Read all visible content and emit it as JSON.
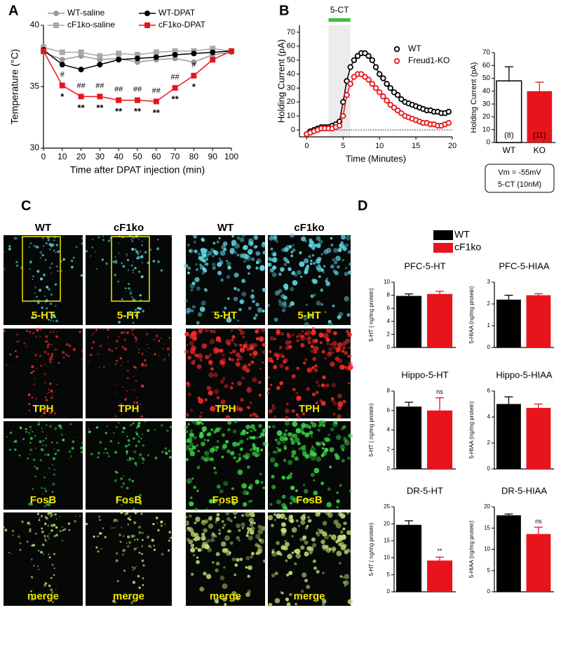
{
  "panel_labels": [
    "A",
    "B",
    "C",
    "D"
  ],
  "chart_data": [
    {
      "type": "line",
      "xlabel": "Time after DPAT injection (min)",
      "ylabel": "Temperature (°C)",
      "x": [
        0,
        10,
        20,
        30,
        40,
        50,
        60,
        70,
        80,
        90,
        100
      ],
      "xlim": [
        0,
        100
      ],
      "ylim": [
        30,
        40
      ],
      "xticks": [
        0,
        10,
        20,
        30,
        40,
        50,
        60,
        70,
        80,
        90,
        100
      ],
      "yticks": [
        30,
        35,
        40
      ],
      "series": [
        {
          "name": "WT-saline",
          "color": "#9a9a9a",
          "marker": "circle",
          "values": [
            37.8,
            37.2,
            37.5,
            37.2,
            37.3,
            37.0,
            37.2,
            37.3,
            37.0,
            37.6,
            37.8
          ]
        },
        {
          "name": "cF1ko-saline",
          "color": "#a8a8a8",
          "marker": "square",
          "values": [
            38.2,
            37.8,
            37.8,
            37.5,
            37.7,
            37.6,
            37.8,
            37.9,
            37.9,
            38.1,
            37.9
          ]
        },
        {
          "name": "WT-DPAT",
          "color": "#000000",
          "marker": "circle",
          "values": [
            38.0,
            36.8,
            36.4,
            36.8,
            37.2,
            37.3,
            37.4,
            37.6,
            37.7,
            37.8,
            37.9
          ]
        },
        {
          "name": "cF1ko-DPAT",
          "color": "#e8141c",
          "marker": "square",
          "values": [
            37.9,
            35.1,
            34.2,
            34.2,
            33.9,
            33.9,
            33.8,
            34.9,
            35.9,
            37.2,
            37.9
          ],
          "hash_labels": [
            null,
            "#",
            "##",
            "##",
            "##",
            "##",
            "##",
            "##",
            "#",
            null,
            null
          ],
          "star_labels": [
            null,
            "*",
            "**",
            "**",
            "**",
            "**",
            "**",
            "**",
            "*",
            null,
            null
          ]
        }
      ]
    },
    {
      "type": "line",
      "xlabel": "Time (Minutes)",
      "ylabel": "Holding Current (pA)",
      "x": [
        0,
        0.5,
        1,
        1.5,
        2,
        2.5,
        3,
        3.5,
        4,
        4.5,
        5,
        5.5,
        6,
        6.5,
        7,
        7.5,
        8,
        8.5,
        9,
        9.5,
        10,
        10.5,
        11,
        11.5,
        12,
        12.5,
        13,
        13.5,
        14,
        14.5,
        15,
        15.5,
        16,
        16.5,
        17,
        17.5,
        18,
        18.5,
        19,
        19.5
      ],
      "xlim": [
        -1,
        20
      ],
      "ylim": [
        -5,
        75
      ],
      "xticks": [
        0,
        5,
        10,
        15,
        20
      ],
      "yticks": [
        0,
        10,
        20,
        30,
        40,
        50,
        60,
        70
      ],
      "reference_line": 0,
      "stimulus": {
        "label": "5-CT",
        "start": 3,
        "end": 6,
        "color": "#3cbf3c"
      },
      "series": [
        {
          "name": "WT",
          "color": "#000000",
          "marker": "open-circle",
          "values": [
            -3,
            -1,
            0,
            1,
            2,
            2,
            2,
            3,
            4,
            6,
            20,
            35,
            45,
            50,
            53,
            55,
            55,
            53,
            50,
            45,
            40,
            37,
            33,
            30,
            27,
            25,
            22,
            20,
            19,
            18,
            17,
            16,
            15,
            14,
            14,
            13,
            13,
            12,
            12,
            13
          ]
        },
        {
          "name": "Freud1-KO",
          "color": "#e8141c",
          "marker": "open-circle",
          "values": [
            -3,
            -2,
            -1,
            0,
            1,
            1,
            1,
            1,
            2,
            3,
            10,
            25,
            33,
            38,
            40,
            40,
            38,
            36,
            33,
            30,
            27,
            24,
            21,
            18,
            16,
            14,
            12,
            10,
            9,
            8,
            7,
            6,
            5,
            5,
            4,
            4,
            3,
            3,
            4,
            5
          ]
        }
      ]
    },
    {
      "type": "bar",
      "ylabel": "Holding Current (pA)",
      "categories": [
        "WT",
        "KO"
      ],
      "values": [
        48,
        40
      ],
      "errors": [
        11,
        7
      ],
      "colors": [
        "#ffffff",
        "#e8141c"
      ],
      "n_labels": [
        "(8)",
        "(11)"
      ],
      "ylim": [
        0,
        70
      ],
      "yticks": [
        0,
        10,
        20,
        30,
        40,
        50,
        60,
        70
      ],
      "note": [
        "Vm = -55mV",
        "5-CT (10nM)"
      ]
    },
    {
      "type": "bar",
      "title": "PFC-5-HT",
      "ylabel": "5-HT ( ng/mg protein)",
      "values": [
        7.9,
        8.2
      ],
      "errors": [
        0.3,
        0.4
      ],
      "sig_labels": [
        null,
        null
      ],
      "ylim": [
        0,
        10
      ],
      "yticks": [
        0,
        2,
        4,
        6,
        8,
        10
      ]
    },
    {
      "type": "bar",
      "title": "PFC-5-HIAA",
      "ylabel": "5-HIAA (ng/mg protein)",
      "values": [
        2.2,
        2.4
      ],
      "errors": [
        0.2,
        0.07
      ],
      "sig_labels": [
        null,
        null
      ],
      "ylim": [
        0,
        3
      ],
      "yticks": [
        0,
        1,
        2,
        3
      ]
    },
    {
      "type": "bar",
      "title": "Hippo-5-HT",
      "ylabel": "5-HT ( ng/mg protein)",
      "values": [
        6.4,
        6.0
      ],
      "errors": [
        0.45,
        1.3
      ],
      "sig_labels": [
        null,
        "ns"
      ],
      "ylim": [
        0,
        8
      ],
      "yticks": [
        0,
        2,
        4,
        6,
        8
      ]
    },
    {
      "type": "bar",
      "title": "Hippo-5-HIAA",
      "ylabel": "5-HIAA (ng/mg protein)",
      "values": [
        5.0,
        4.7
      ],
      "errors": [
        0.55,
        0.3
      ],
      "sig_labels": [
        null,
        null
      ],
      "ylim": [
        0,
        6
      ],
      "yticks": [
        0,
        2,
        4,
        6
      ]
    },
    {
      "type": "bar",
      "title": "DR-5-HT",
      "ylabel": "5-HT ( ng/mg protein)",
      "values": [
        19.7,
        9.2
      ],
      "errors": [
        1.2,
        1.0
      ],
      "sig_labels": [
        null,
        "**"
      ],
      "ylim": [
        0,
        25
      ],
      "yticks": [
        0,
        5,
        10,
        15,
        20,
        25
      ]
    },
    {
      "type": "bar",
      "title": "DR-5-HIAA",
      "ylabel": "5-HIAA (ng/mg protein)",
      "values": [
        18.0,
        13.6
      ],
      "errors": [
        0.3,
        1.6
      ],
      "sig_labels": [
        null,
        "ns"
      ],
      "ylim": [
        0,
        20
      ],
      "yticks": [
        0,
        5,
        10,
        15,
        20
      ]
    }
  ],
  "d_legend": [
    {
      "name": "WT",
      "color": "#000000"
    },
    {
      "name": "cF1ko",
      "color": "#e8141c"
    }
  ],
  "microscopy": {
    "columns": [
      "WT",
      "cF1ko",
      "WT",
      "cF1ko"
    ],
    "rows": [
      "5-HT",
      "TPH",
      "FosB",
      "merge"
    ],
    "row_colors": [
      "#5fd8e6",
      "#ff2a2a",
      "#3ddc4a",
      "#c8e07a"
    ]
  }
}
